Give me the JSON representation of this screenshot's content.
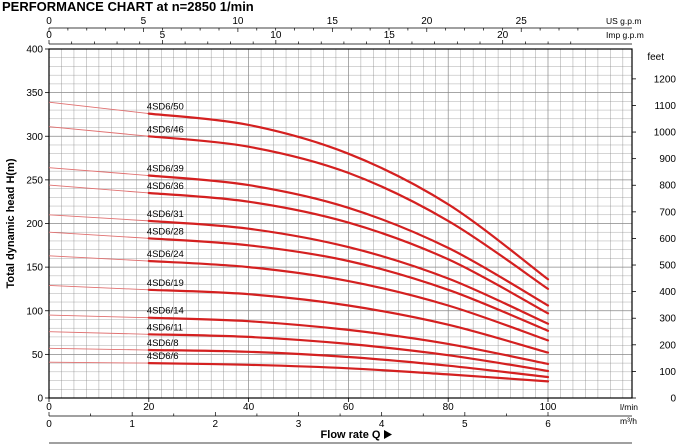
{
  "title": "PERFORMANCE CHART at n=2850 1/min",
  "colors": {
    "curve": "#d42020",
    "curve_extension": "#e07070",
    "grid": "#888888",
    "axis": "#000000"
  },
  "chart_data": {
    "type": "line",
    "title": "PERFORMANCE CHART at n=2850 1/min",
    "xlabel": "Flow rate Q",
    "ylabel": "Total dynamic head H(m)",
    "x_unit": "l/min",
    "xlim": [
      0,
      100
    ],
    "ylim": [
      0,
      400
    ],
    "grid": true,
    "x_ticks": [
      "0",
      "20",
      "40",
      "60",
      "80",
      "100"
    ],
    "y_ticks": [
      "0",
      "50",
      "100",
      "150",
      "200",
      "250",
      "300",
      "350",
      "400"
    ],
    "secondary_axes": {
      "top_us": {
        "unit": "US g.p.m",
        "ticks": [
          "0",
          "5",
          "10",
          "15",
          "20",
          "25"
        ]
      },
      "top_imp": {
        "unit": "Imp g.p.m",
        "ticks": [
          "0",
          "5",
          "10",
          "15",
          "20"
        ]
      },
      "bottom_m3h": {
        "unit": "m³/h",
        "ticks": [
          "0",
          "1",
          "2",
          "3",
          "4",
          "5",
          "6"
        ]
      },
      "right_feet": {
        "unit": "feet",
        "ticks": [
          "0",
          "100",
          "200",
          "300",
          "400",
          "500",
          "600",
          "700",
          "800",
          "900",
          "1000",
          "1100",
          "1200"
        ]
      }
    },
    "series": [
      {
        "name": "4SD6/50",
        "x": [
          0,
          20,
          40,
          60,
          80,
          100
        ],
        "y": [
          339,
          326,
          313,
          280,
          222,
          136
        ]
      },
      {
        "name": "4SD6/46",
        "x": [
          0,
          20,
          40,
          60,
          80,
          100
        ],
        "y": [
          311,
          300,
          288,
          258,
          203,
          125
        ]
      },
      {
        "name": "4SD6/39",
        "x": [
          0,
          20,
          40,
          60,
          80,
          100
        ],
        "y": [
          264,
          255,
          244,
          218,
          172,
          106
        ]
      },
      {
        "name": "4SD6/36",
        "x": [
          0,
          20,
          40,
          60,
          80,
          100
        ],
        "y": [
          244,
          235,
          225,
          201,
          159,
          97
        ]
      },
      {
        "name": "4SD6/31",
        "x": [
          0,
          20,
          40,
          60,
          80,
          100
        ],
        "y": [
          210,
          203,
          194,
          173,
          137,
          85
        ]
      },
      {
        "name": "4SD6/28",
        "x": [
          0,
          20,
          40,
          60,
          80,
          100
        ],
        "y": [
          190,
          183,
          175,
          157,
          124,
          77
        ]
      },
      {
        "name": "4SD6/24",
        "x": [
          0,
          20,
          40,
          60,
          80,
          100
        ],
        "y": [
          163,
          157,
          150,
          134,
          106,
          66
        ]
      },
      {
        "name": "4SD6/19",
        "x": [
          0,
          20,
          40,
          60,
          80,
          100
        ],
        "y": [
          129,
          124,
          119,
          106,
          84,
          52
        ]
      },
      {
        "name": "4SD6/14",
        "x": [
          0,
          20,
          40,
          60,
          80,
          100
        ],
        "y": [
          95,
          92,
          88,
          78,
          62,
          39
        ]
      },
      {
        "name": "4SD6/11",
        "x": [
          0,
          20,
          40,
          60,
          80,
          100
        ],
        "y": [
          76,
          73,
          70,
          62,
          49,
          31
        ]
      },
      {
        "name": "4SD6/8",
        "x": [
          0,
          20,
          40,
          60,
          80,
          100
        ],
        "y": [
          57,
          55,
          53,
          47,
          37,
          24
        ]
      },
      {
        "name": "4SD6/6",
        "x": [
          0,
          20,
          40,
          60,
          80,
          100
        ],
        "y": [
          41,
          40,
          38,
          34,
          27,
          19
        ]
      }
    ]
  }
}
